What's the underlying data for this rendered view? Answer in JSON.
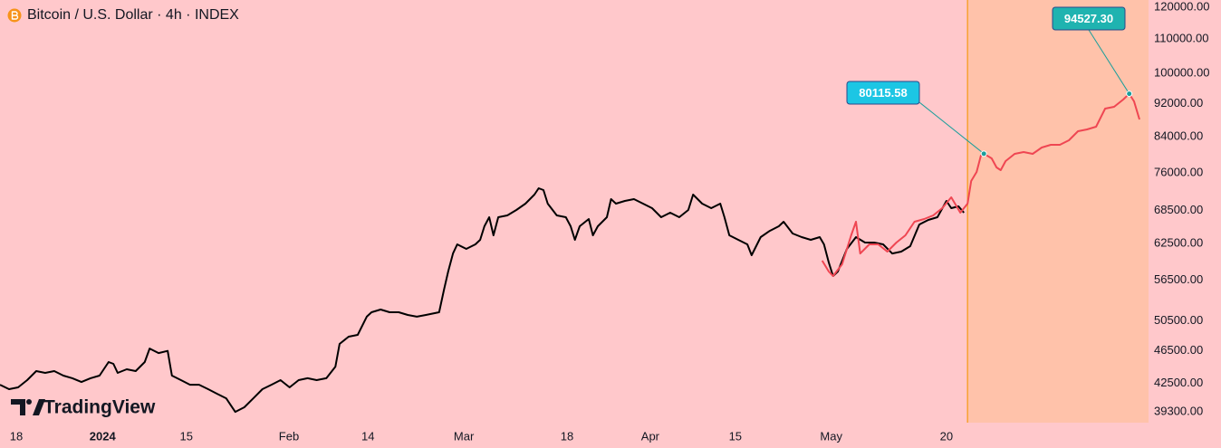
{
  "chart_data": {
    "type": "line",
    "title": "Bitcoin / U.S. Dollar · 4h · INDEX",
    "watermark": "TradingView",
    "log_scale": true,
    "grid": false,
    "background": "#ffc8cb",
    "shade_from": 157.7,
    "shade_color": "#ffc2aa",
    "shade_line_color": "#f7a234",
    "xlim": [
      -2.7,
      187.7
    ],
    "xticks": [
      {
        "value": 0,
        "label": "18"
      },
      {
        "value": 14.3,
        "label": "2024"
      },
      {
        "value": 28.2,
        "label": "15"
      },
      {
        "value": 45.2,
        "label": "Feb"
      },
      {
        "value": 58.3,
        "label": "14"
      },
      {
        "value": 74.2,
        "label": "Mar"
      },
      {
        "value": 91.3,
        "label": "18"
      },
      {
        "value": 105.1,
        "label": "Apr"
      },
      {
        "value": 119.2,
        "label": "15"
      },
      {
        "value": 135.1,
        "label": "May"
      },
      {
        "value": 154.2,
        "label": "20"
      }
    ],
    "ylim": [
      38150,
      122420
    ],
    "yticks": [
      {
        "value": 120000,
        "label": "120000.00"
      },
      {
        "value": 110000,
        "label": "110000.00"
      },
      {
        "value": 100000,
        "label": "100000.00"
      },
      {
        "value": 92000,
        "label": "92000.00"
      },
      {
        "value": 84000,
        "label": "84000.00"
      },
      {
        "value": 76000,
        "label": "76000.00"
      },
      {
        "value": 68500,
        "label": "68500.00"
      },
      {
        "value": 62500,
        "label": "62500.00"
      },
      {
        "value": 56500,
        "label": "56500.00"
      },
      {
        "value": 50500,
        "label": "50500.00"
      },
      {
        "value": 46500,
        "label": "46500.00"
      },
      {
        "value": 42500,
        "label": "42500.00"
      },
      {
        "value": 39300,
        "label": "39300.00"
      }
    ],
    "series": [
      {
        "color": "#000000",
        "x": [
          -2.7,
          -1.2,
          0.3,
          1.8,
          3.3,
          4.8,
          6.3,
          7.8,
          9.3,
          10.8,
          12.3,
          13.8,
          15.3,
          16.1,
          16.8,
          18.3,
          19.8,
          21.3,
          22.1,
          23.6,
          25.1,
          25.8,
          27.3,
          28.8,
          30.3,
          31.8,
          33.3,
          34.8,
          36.3,
          37.8,
          39.3,
          40.8,
          42.3,
          43.8,
          45.3,
          46.8,
          48.3,
          49.8,
          51.4,
          52.9,
          53.6,
          55.1,
          56.6,
          58.1,
          58.9,
          60.4,
          61.9,
          63.4,
          64.9,
          66.4,
          67.9,
          70.1,
          70.9,
          71.6,
          72.4,
          73.1,
          74.6,
          76.1,
          76.9,
          77.6,
          78.4,
          79.1,
          79.9,
          81.4,
          82.9,
          84.4,
          85.9,
          86.6,
          87.4,
          88.1,
          89.6,
          91.1,
          91.9,
          92.6,
          93.4,
          94.9,
          95.6,
          96.4,
          97.9,
          98.6,
          99.4,
          100.9,
          102.4,
          103.9,
          105.4,
          106.9,
          108.4,
          109.9,
          111.4,
          112.2,
          113.7,
          115.2,
          116.7,
          117.4,
          118.2,
          119.7,
          121.2,
          121.9,
          123.4,
          124.9,
          126.4,
          127.2,
          128.7,
          130.2,
          131.7,
          133.2,
          133.9,
          134.7,
          135.4,
          136.2,
          137.7,
          139.2,
          140.7,
          142.2,
          143.7,
          145.2,
          146.7,
          148.2,
          149.7,
          151.2,
          152.7,
          154.2,
          155.0,
          156.2,
          157.1
        ],
        "values": [
          42360,
          41840,
          42050,
          42900,
          43980,
          43760,
          43980,
          43440,
          43120,
          42680,
          43120,
          43440,
          45100,
          44870,
          43760,
          44200,
          43980,
          45100,
          46810,
          46230,
          46500,
          43440,
          42900,
          42360,
          42360,
          41840,
          41310,
          40800,
          39300,
          39800,
          40800,
          41840,
          42360,
          42900,
          42050,
          42900,
          43120,
          42900,
          43120,
          44530,
          47400,
          48360,
          48600,
          51100,
          51730,
          52120,
          51730,
          51730,
          51350,
          51100,
          51350,
          51730,
          55070,
          57880,
          60840,
          62390,
          61610,
          62390,
          63170,
          65580,
          67240,
          63960,
          67240,
          67570,
          68590,
          69800,
          71570,
          72830,
          72470,
          69800,
          67570,
          67240,
          65580,
          63170,
          65580,
          66900,
          63960,
          65580,
          67240,
          70680,
          69800,
          70330,
          70680,
          69800,
          68940,
          67240,
          68080,
          67240,
          68590,
          71570,
          69800,
          68940,
          69800,
          67240,
          63960,
          63170,
          62390,
          60540,
          63650,
          64760,
          65580,
          66400,
          64280,
          63650,
          63170,
          63650,
          62390,
          59340,
          57170,
          57880,
          61610,
          63650,
          62700,
          62700,
          62390,
          60840,
          61150,
          62080,
          65900,
          66730,
          67240,
          70330,
          68940,
          69290,
          68080
        ]
      },
      {
        "color": "#ef4652",
        "x": [
          133.6,
          134.7,
          135.4,
          136.9,
          138.4,
          139.2,
          139.9,
          141.4,
          142.9,
          144.4,
          145.9,
          147.4,
          148.9,
          150.5,
          152.0,
          153.5,
          155.0,
          156.5,
          157.7,
          158.3,
          159.2,
          159.9,
          160.4,
          161.7,
          162.5,
          163.2,
          164.0,
          165.5,
          167.0,
          168.5,
          170.0,
          171.5,
          173.0,
          174.5,
          176.0,
          177.5,
          179.0,
          180.5,
          182.0,
          183.5,
          184.5,
          185.3,
          186.2
        ],
        "values": [
          59640,
          57880,
          57170,
          59050,
          63960,
          66400,
          60840,
          62390,
          62390,
          61150,
          62700,
          63960,
          66400,
          66900,
          67570,
          68940,
          71040,
          68080,
          69800,
          74300,
          76180,
          79680,
          80115.58,
          79080,
          77140,
          76560,
          78490,
          80080,
          80480,
          80080,
          81490,
          82100,
          82100,
          83140,
          85240,
          85670,
          86300,
          90720,
          91180,
          93010,
          94527.3,
          92550,
          88040
        ]
      }
    ],
    "annotations": [
      {
        "label": "80115.58",
        "x": 160.4,
        "value": 80115.58,
        "color": "#1cc6e4"
      },
      {
        "label": "94527.30",
        "x": 184.5,
        "value": 94527.3,
        "color": "#1fb3b0"
      }
    ]
  }
}
